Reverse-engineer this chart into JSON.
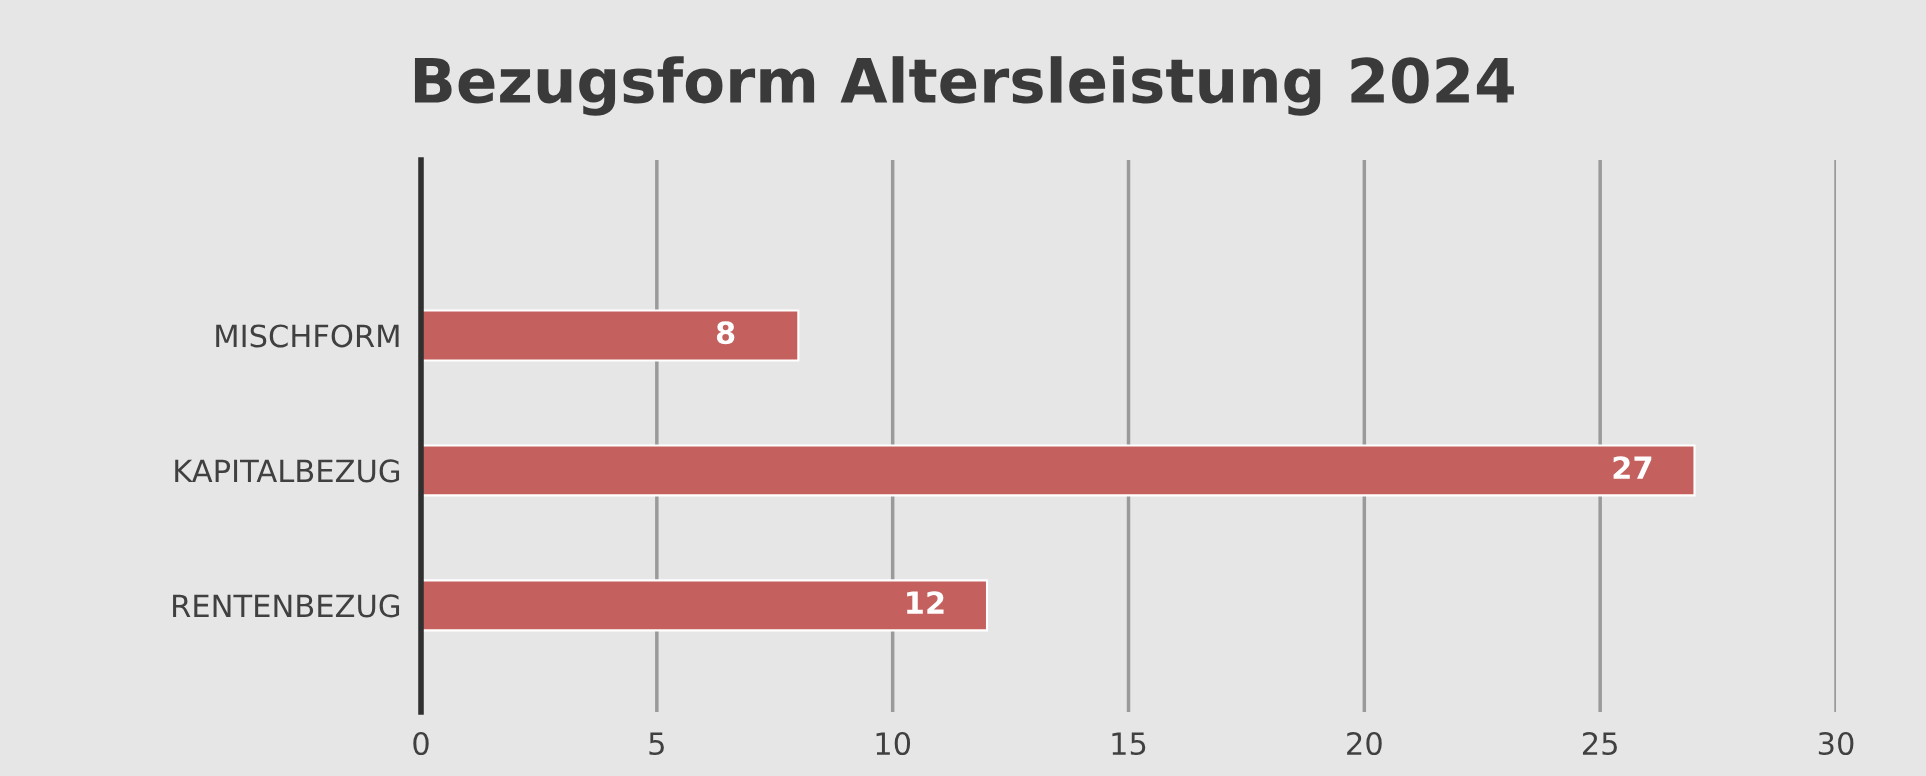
{
  "chart_data": {
    "type": "bar",
    "orientation": "horizontal",
    "title": "Bezugsform Altersleistung 2024",
    "categories": [
      "MISCHFORM",
      "KAPITALBEZUG",
      "RENTENBEZUG"
    ],
    "values": [
      8,
      27,
      12
    ],
    "color": "#c4605d",
    "xlim": [
      0,
      30
    ],
    "xticks": [
      0,
      5,
      10,
      15,
      20,
      25,
      30
    ],
    "grid": "x",
    "data_labels": true
  }
}
